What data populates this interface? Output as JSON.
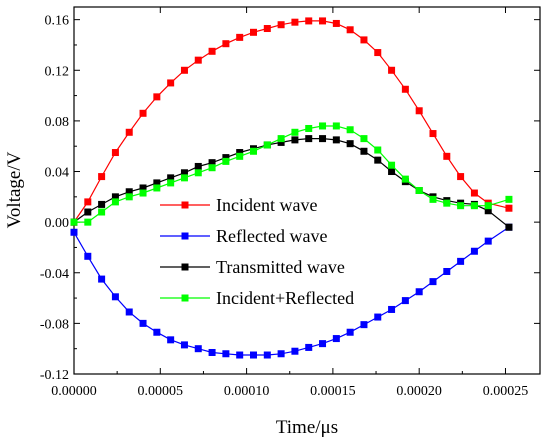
{
  "chart_data": {
    "type": "line",
    "title": "",
    "xlabel": "Time/μs",
    "ylabel": "Voltage/V",
    "xlim": [
      0.0,
      0.00027
    ],
    "ylim": [
      -0.12,
      0.17
    ],
    "x_ticks": [
      0.0,
      5e-05,
      0.0001,
      0.00015,
      0.0002,
      0.00025
    ],
    "x_tick_labels": [
      "0.00000",
      "0.00005",
      "0.00010",
      "0.00015",
      "0.00020",
      "0.00025"
    ],
    "y_ticks": [
      -0.12,
      -0.08,
      -0.04,
      0.0,
      0.04,
      0.08,
      0.12,
      0.16
    ],
    "y_tick_labels": [
      "-0.12",
      "-0.08",
      "-0.04",
      "0.00",
      "0.04",
      "0.08",
      "0.12",
      "0.16"
    ],
    "grid": false,
    "legend_position": "center",
    "x": [
      0.0,
      8e-06,
      1.6e-05,
      2.4e-05,
      3.2e-05,
      4e-05,
      4.8e-05,
      5.6e-05,
      6.4e-05,
      7.2e-05,
      8e-05,
      8.8e-05,
      9.6e-05,
      0.000104,
      0.000112,
      0.00012,
      0.000128,
      0.000136,
      0.000144,
      0.000152,
      0.00016,
      0.000168,
      0.000176,
      0.000184,
      0.000192,
      0.0002,
      0.000208,
      0.000216,
      0.000224,
      0.000232,
      0.00024,
      0.000252
    ],
    "series": [
      {
        "name": "Incident wave",
        "color": "#ff0000",
        "values": [
          0.0,
          0.016,
          0.036,
          0.055,
          0.071,
          0.086,
          0.099,
          0.11,
          0.12,
          0.128,
          0.135,
          0.141,
          0.146,
          0.15,
          0.153,
          0.156,
          0.158,
          0.159,
          0.159,
          0.157,
          0.152,
          0.144,
          0.134,
          0.12,
          0.105,
          0.088,
          0.07,
          0.052,
          0.036,
          0.023,
          0.015,
          0.011
        ]
      },
      {
        "name": "Reflected wave",
        "color": "#0000ff",
        "values": [
          -0.008,
          -0.027,
          -0.045,
          -0.059,
          -0.071,
          -0.08,
          -0.087,
          -0.093,
          -0.097,
          -0.1,
          -0.103,
          -0.104,
          -0.105,
          -0.105,
          -0.105,
          -0.104,
          -0.102,
          -0.099,
          -0.096,
          -0.092,
          -0.087,
          -0.081,
          -0.075,
          -0.069,
          -0.062,
          -0.055,
          -0.047,
          -0.039,
          -0.031,
          -0.023,
          -0.015,
          -0.004
        ]
      },
      {
        "name": "Transmitted wave",
        "color": "#000000",
        "values": [
          0.0,
          0.008,
          0.014,
          0.02,
          0.024,
          0.027,
          0.031,
          0.035,
          0.039,
          0.044,
          0.047,
          0.051,
          0.055,
          0.058,
          0.061,
          0.063,
          0.065,
          0.066,
          0.066,
          0.065,
          0.062,
          0.056,
          0.049,
          0.04,
          0.032,
          0.025,
          0.02,
          0.017,
          0.015,
          0.014,
          0.009,
          -0.004
        ]
      },
      {
        "name": "Incident+Reflected",
        "color": "#00ff00",
        "values": [
          0.0,
          0.0,
          0.008,
          0.016,
          0.02,
          0.023,
          0.027,
          0.031,
          0.035,
          0.039,
          0.043,
          0.048,
          0.052,
          0.056,
          0.061,
          0.066,
          0.071,
          0.074,
          0.076,
          0.076,
          0.073,
          0.066,
          0.057,
          0.045,
          0.034,
          0.025,
          0.018,
          0.015,
          0.013,
          0.013,
          0.013,
          0.018
        ]
      }
    ]
  }
}
